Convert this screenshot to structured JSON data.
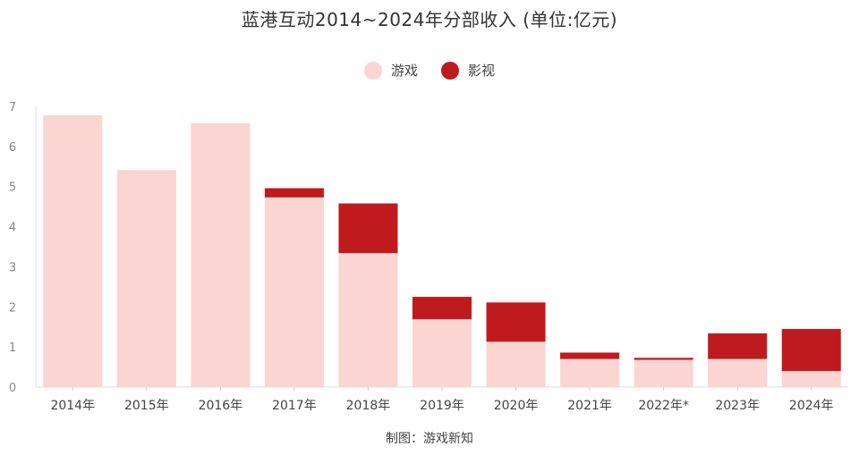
{
  "chart_data": {
    "type": "bar",
    "stacked": true,
    "title": "蓝港互动2014~2024年分部收入 (单位:亿元)",
    "categories": [
      "2014年",
      "2015年",
      "2016年",
      "2017年",
      "2018年",
      "2019年",
      "2020年",
      "2021年",
      "2022年*",
      "2023年",
      "2024年"
    ],
    "series": [
      {
        "name": "游戏",
        "color": "#fbd5d1",
        "values": [
          6.78,
          5.41,
          6.58,
          4.73,
          3.34,
          1.69,
          1.13,
          0.7,
          0.68,
          0.7,
          0.4
        ]
      },
      {
        "name": "影视",
        "color": "#bf1b1f",
        "values": [
          0,
          0,
          0,
          0.23,
          1.24,
          0.56,
          0.98,
          0.16,
          0.05,
          0.64,
          1.05
        ]
      }
    ],
    "ylim": [
      0,
      7
    ],
    "yticks": [
      0,
      1,
      2,
      3,
      4,
      5,
      6,
      7
    ],
    "legend_position": "top-center",
    "grid": false
  },
  "source_note": "制图：游戏新知"
}
